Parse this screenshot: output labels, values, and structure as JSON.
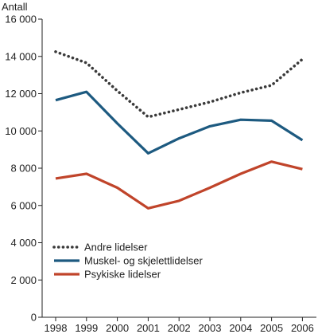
{
  "chart_data": {
    "type": "line",
    "title": "",
    "ylabel": "Antall",
    "xlabel": "",
    "categories": [
      "1998",
      "1999",
      "2000",
      "2001",
      "2002",
      "2003",
      "2004",
      "2005",
      "2006"
    ],
    "ylim": [
      0,
      16000
    ],
    "yticks": [
      0,
      2000,
      4000,
      6000,
      8000,
      10000,
      12000,
      14000,
      16000
    ],
    "ytick_labels": [
      "0",
      "2 000",
      "4 000",
      "6 000",
      "8 000",
      "10 000",
      "12 000",
      "14 000",
      "16 000"
    ],
    "grid": false,
    "legend_position": "bottom-left",
    "series": [
      {
        "name": "Andre lidelser",
        "style": "dotted",
        "color": "#3a3a3a",
        "values": [
          14250,
          13650,
          12150,
          10750,
          11150,
          11550,
          12050,
          12450,
          13850
        ]
      },
      {
        "name": "Muskel- og skjelettlidelser",
        "style": "solid",
        "color": "#1d5a80",
        "values": [
          11650,
          12100,
          10400,
          8800,
          9600,
          10250,
          10600,
          10550,
          9500
        ]
      },
      {
        "name": "Psykiske lidelser",
        "style": "solid",
        "color": "#c0442a",
        "values": [
          7450,
          7700,
          6950,
          5850,
          6250,
          6950,
          7700,
          8350,
          7950
        ]
      }
    ]
  }
}
